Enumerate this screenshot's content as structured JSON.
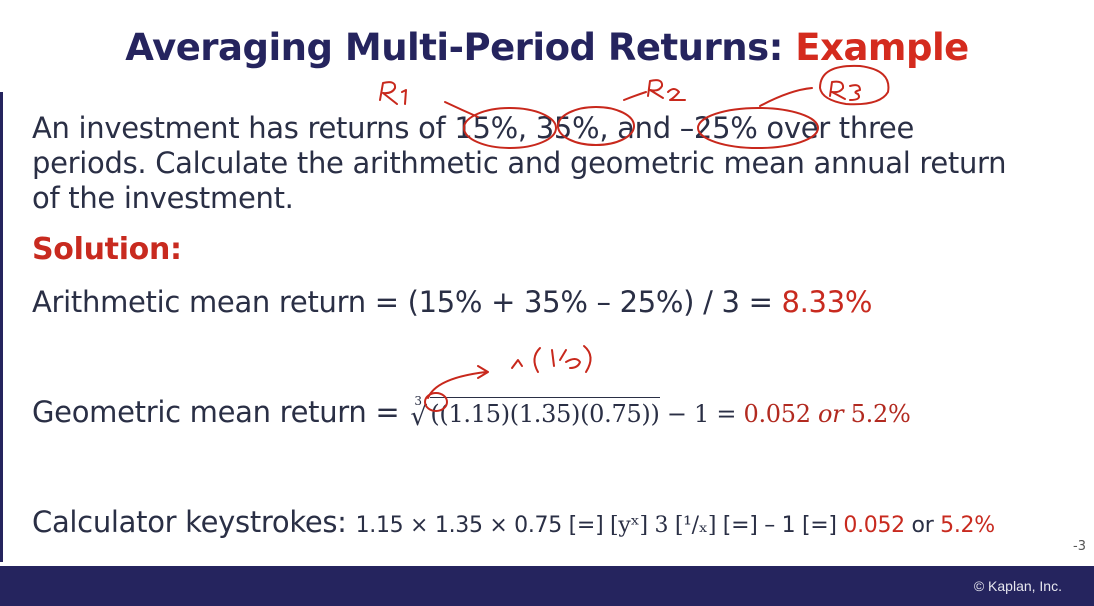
{
  "slide": {
    "title_main": "Averaging Multi-Period Returns: ",
    "title_accent": "Example",
    "problem_text": "An investment has returns of 15%, 35%, and –25% over three periods. Calculate the arithmetic and geometric mean annual return of the investment.",
    "solution_label": "Solution:",
    "arithmetic": {
      "label": "Arithmetic mean return = (15% + 35% – 25%) / 3 = ",
      "result": "8.33%"
    },
    "geometric": {
      "label": "Geometric mean return = ",
      "root_index": "3",
      "radicand": "((1.15)(1.35)(0.75))",
      "minus_one": " − 1 = ",
      "result_decimal": "0.052",
      "or_word": " or ",
      "result_percent": "5.2%"
    },
    "calculator": {
      "label": "Calculator keystrokes: ",
      "keys_part1": "1.15 × 1.35 × 0.75 [=] ",
      "yx_key": "[yˣ]",
      "keys_part2": "  3  ",
      "inv_key": "[¹/ₓ]",
      "keys_part3": " [=] – 1 [=] ",
      "result_decimal": "0.052",
      "or_word": " or ",
      "result_percent": "5.2%"
    },
    "slide_number": "-3",
    "copyright": "© Kaplan, Inc."
  },
  "annotations": {
    "r1": "R₁",
    "r2": "R₂",
    "r3": "R₃",
    "exponent_note": "^(¹/₃)"
  },
  "colors": {
    "title_navy": "#25245e",
    "accent_red": "#d42b1e",
    "ink_red": "#c8281c",
    "footer_navy": "#25245e"
  }
}
